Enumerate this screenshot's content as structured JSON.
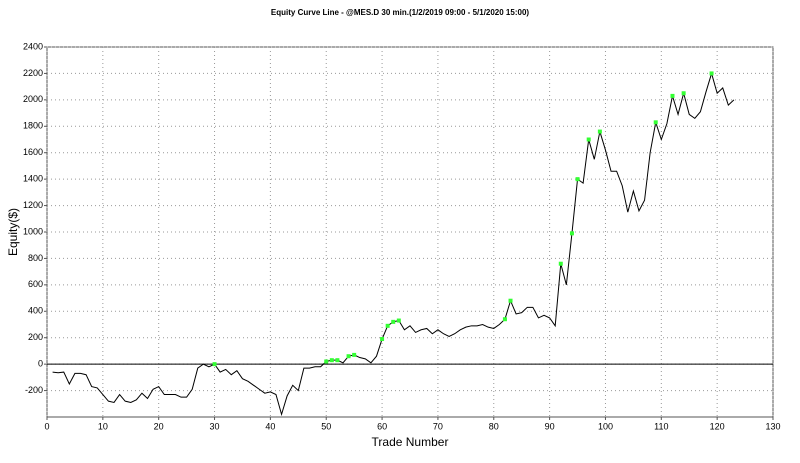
{
  "chart_data": {
    "type": "line",
    "title": "Equity Curve Line - @MES.D 30 min.(1/2/2019 09:00 - 5/1/2020 15:00)",
    "x_label": "Trade Number",
    "y_label": "Equity($)",
    "xlim": [
      0,
      130
    ],
    "xticks": [
      0,
      10,
      20,
      30,
      40,
      50,
      60,
      70,
      80,
      90,
      100,
      110,
      120,
      130
    ],
    "ylim": [
      -400,
      2400
    ],
    "yticks": [
      -200,
      0,
      200,
      400,
      600,
      800,
      1000,
      1200,
      1400,
      1600,
      1800,
      2000,
      2200,
      2400
    ],
    "grid": true,
    "series": [
      {
        "color": "#000000",
        "style": "line",
        "x": [
          1,
          2,
          3,
          4,
          5,
          6,
          7,
          8,
          9,
          10,
          11,
          12,
          13,
          14,
          15,
          16,
          17,
          18,
          19,
          20,
          21,
          22,
          23,
          24,
          25,
          26,
          27,
          28,
          29,
          30,
          31,
          32,
          33,
          34,
          35,
          36,
          37,
          38,
          39,
          40,
          41,
          42,
          43,
          44,
          45,
          46,
          47,
          48,
          49,
          50,
          51,
          52,
          53,
          54,
          55,
          56,
          57,
          58,
          59,
          60,
          61,
          62,
          63,
          64,
          65,
          66,
          67,
          68,
          69,
          70,
          71,
          72,
          73,
          74,
          75,
          76,
          77,
          78,
          79,
          80,
          81,
          82,
          83,
          84,
          85,
          86,
          87,
          88,
          89,
          90,
          91,
          92,
          93,
          94,
          95,
          96,
          97,
          98,
          99,
          100,
          101,
          102,
          103,
          104,
          105,
          106,
          107,
          108,
          109,
          110,
          111,
          112,
          113,
          114,
          115,
          116,
          117,
          118,
          119,
          120,
          121,
          122,
          123
        ],
        "values": [
          -60,
          -65,
          -60,
          -150,
          -70,
          -70,
          -80,
          -170,
          -180,
          -230,
          -280,
          -290,
          -230,
          -280,
          -290,
          -270,
          -220,
          -260,
          -190,
          -170,
          -230,
          -230,
          -230,
          -250,
          -250,
          -190,
          -30,
          0,
          -20,
          0,
          -60,
          -40,
          -80,
          -50,
          -110,
          -130,
          -160,
          -190,
          -220,
          -210,
          -230,
          -380,
          -240,
          -160,
          -200,
          -30,
          -30,
          -20,
          -20,
          20,
          30,
          30,
          10,
          60,
          70,
          50,
          40,
          10,
          60,
          190,
          290,
          320,
          330,
          260,
          290,
          240,
          260,
          270,
          230,
          260,
          230,
          210,
          230,
          260,
          280,
          290,
          290,
          300,
          280,
          270,
          300,
          340,
          480,
          380,
          390,
          430,
          430,
          350,
          370,
          350,
          290,
          760,
          600,
          990,
          1400,
          1370,
          1700,
          1550,
          1760,
          1620,
          1460,
          1460,
          1350,
          1150,
          1310,
          1160,
          1240,
          1600,
          1830,
          1700,
          1820,
          2030,
          1890,
          2050,
          1890,
          1860,
          1910,
          2060,
          2200,
          2050,
          2090,
          1960,
          2000
        ]
      },
      {
        "color": "#33ff33",
        "style": "marker",
        "x": [
          30,
          50,
          51,
          52,
          54,
          55,
          60,
          61,
          62,
          63,
          82,
          83,
          92,
          94,
          95,
          97,
          99,
          109,
          112,
          114,
          119
        ],
        "values": [
          0,
          20,
          30,
          30,
          60,
          70,
          190,
          290,
          320,
          330,
          340,
          480,
          760,
          990,
          1400,
          1700,
          1760,
          1830,
          2030,
          2050,
          2200
        ]
      }
    ]
  }
}
